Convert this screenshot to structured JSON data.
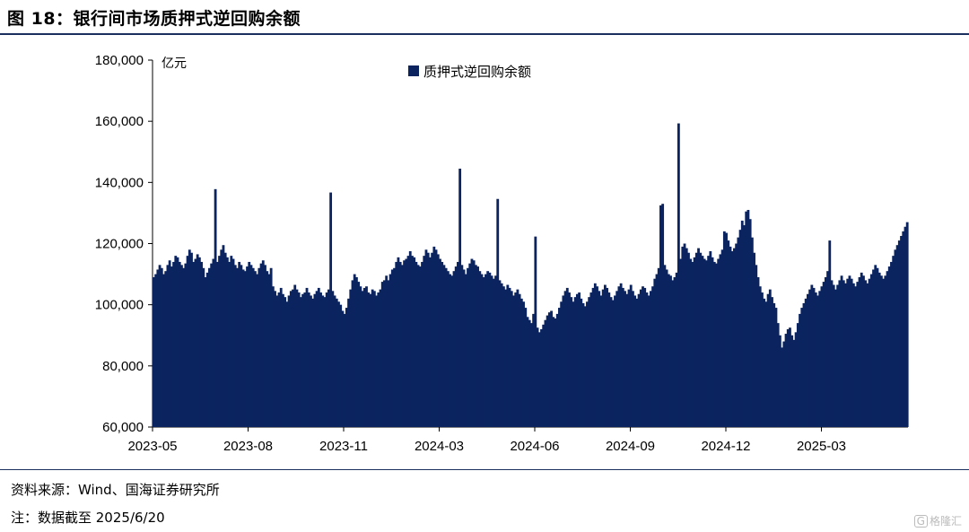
{
  "header": {
    "title": "图 18：银行间市场质押式逆回购余额"
  },
  "footer": {
    "source": "资料来源：Wind、国海证券研究所",
    "note": "注：数据截至 2025/6/20",
    "watermark": "格隆汇",
    "watermark_icon": "g-logo-icon"
  },
  "colors": {
    "bar": "#0b2460",
    "rule": "#1b2f5e"
  },
  "chart_data": {
    "type": "bar",
    "ylabel": "亿元",
    "ylim": [
      60000,
      180000
    ],
    "yticks": [
      "180,000",
      "160,000",
      "140,000",
      "120,000",
      "100,000",
      "80,000",
      "60,000"
    ],
    "ytick_values": [
      180000,
      160000,
      140000,
      120000,
      100000,
      80000,
      60000
    ],
    "xticks": [
      "2023-05",
      "2023-08",
      "2023-11",
      "2024-03",
      "2024-06",
      "2024-09",
      "2024-12",
      "2025-03"
    ],
    "legend": {
      "label": "质押式逆回购余额",
      "position": "top-center"
    },
    "series": [
      {
        "name": "质押式逆回购余额",
        "values": [
          109000,
          110000,
          111500,
          113000,
          112000,
          110000,
          111000,
          113000,
          114500,
          112500,
          114000,
          116000,
          115500,
          114000,
          113000,
          112000,
          113500,
          116000,
          118000,
          117000,
          114000,
          115000,
          116500,
          115500,
          114000,
          112000,
          109000,
          110500,
          112000,
          113500,
          115000,
          137800,
          114000,
          116000,
          118000,
          119500,
          117000,
          115500,
          114000,
          116000,
          115000,
          113000,
          112000,
          114000,
          113000,
          111500,
          111000,
          112500,
          114000,
          113000,
          112000,
          111000,
          110000,
          112000,
          113500,
          114500,
          113000,
          111000,
          110000,
          112000,
          106000,
          104500,
          103000,
          104000,
          105500,
          103500,
          102500,
          101000,
          103000,
          104500,
          105000,
          106500,
          105000,
          104000,
          102500,
          103500,
          104000,
          105500,
          104000,
          103000,
          102000,
          103500,
          104500,
          105500,
          104000,
          103000,
          102500,
          104000,
          105000,
          136700,
          104500,
          103000,
          102000,
          101000,
          100000,
          98000,
          97000,
          99000,
          102000,
          105000,
          108000,
          110000,
          109000,
          107500,
          106000,
          104500,
          105500,
          106000,
          104000,
          103500,
          105000,
          104500,
          103000,
          104000,
          105000,
          107500,
          108000,
          109500,
          108000,
          110000,
          111500,
          112000,
          114000,
          115500,
          114000,
          113000,
          114500,
          115000,
          116000,
          117500,
          116000,
          115500,
          114000,
          113000,
          112500,
          114000,
          116000,
          118000,
          117000,
          115500,
          117000,
          119000,
          118000,
          116500,
          115000,
          114000,
          113000,
          112000,
          111000,
          110000,
          109500,
          111000,
          112500,
          114000,
          144500,
          113000,
          111500,
          110000,
          112000,
          113500,
          115000,
          114500,
          113000,
          112500,
          111000,
          110000,
          109000,
          110000,
          111000,
          110500,
          109500,
          108500,
          109500,
          134600,
          108000,
          107000,
          106000,
          105000,
          106500,
          105500,
          104500,
          103000,
          104000,
          105000,
          103500,
          102000,
          101000,
          99000,
          96000,
          95000,
          94000,
          97000,
          122300,
          92500,
          91000,
          92000,
          93500,
          95000,
          96500,
          97500,
          98000,
          96000,
          95500,
          97000,
          99000,
          101000,
          103000,
          104500,
          105500,
          104000,
          102500,
          101000,
          102500,
          103500,
          104000,
          102000,
          100500,
          99500,
          101000,
          102500,
          104000,
          105500,
          107000,
          106000,
          104500,
          103000,
          105000,
          106500,
          105500,
          104000,
          102500,
          101500,
          103000,
          104500,
          106000,
          107000,
          105500,
          104500,
          103500,
          105000,
          106500,
          104500,
          103000,
          102000,
          103500,
          105000,
          106000,
          105500,
          104000,
          103000,
          104500,
          106000,
          108500,
          110000,
          112000,
          132500,
          133000,
          113000,
          111500,
          110000,
          109500,
          108000,
          109000,
          110500,
          159300,
          115000,
          119000,
          120000,
          118500,
          117000,
          115000,
          114000,
          115500,
          117000,
          118500,
          117000,
          116000,
          115000,
          114500,
          116000,
          117500,
          115500,
          114000,
          113500,
          115000,
          116500,
          118000,
          124000,
          123500,
          121000,
          119000,
          117500,
          118500,
          120000,
          122000,
          124500,
          127500,
          126000,
          130500,
          131000,
          128000,
          122000,
          117000,
          113000,
          109000,
          106000,
          104000,
          102000,
          101000,
          103500,
          105000,
          102500,
          100500,
          99000,
          94000,
          90000,
          86000,
          88000,
          90500,
          92000,
          92500,
          90000,
          88500,
          91000,
          94000,
          97000,
          99000,
          100500,
          102000,
          103500,
          105000,
          106500,
          105500,
          104000,
          103000,
          104500,
          106000,
          107500,
          109000,
          111000,
          121000,
          108000,
          106500,
          105000,
          106500,
          108000,
          109500,
          108000,
          107000,
          108500,
          109500,
          108500,
          107000,
          106000,
          107500,
          109000,
          110500,
          109500,
          108000,
          107000,
          108500,
          110000,
          111500,
          113000,
          112000,
          110500,
          109500,
          108500,
          109500,
          111000,
          112500,
          114000,
          116000,
          118000,
          119500,
          121000,
          122500,
          124000,
          125500,
          127000
        ]
      }
    ]
  }
}
